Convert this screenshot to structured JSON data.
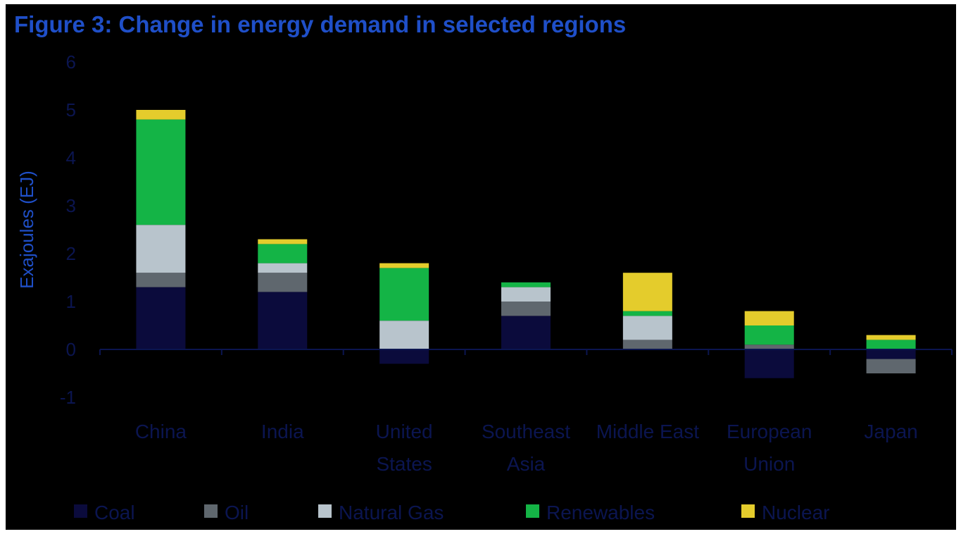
{
  "chart_data": {
    "type": "bar",
    "stacked": true,
    "title": "Figure 3: Change in energy demand in selected regions",
    "ylabel": "Exajoules (EJ)",
    "ylim": [
      -1,
      6
    ],
    "yticks": [
      -1,
      0,
      1,
      2,
      3,
      4,
      5,
      6
    ],
    "categories": [
      [
        "China"
      ],
      [
        "India"
      ],
      [
        "United",
        "States"
      ],
      [
        "Southeast",
        "Asia"
      ],
      [
        "Middle East"
      ],
      [
        "European",
        "Union"
      ],
      [
        "Japan"
      ]
    ],
    "series": [
      {
        "name": "Coal",
        "color": "#0b0b3c",
        "values": [
          1.3,
          1.2,
          -0.3,
          0.7,
          0.0,
          -0.6,
          -0.2
        ]
      },
      {
        "name": "Oil",
        "color": "#5f676e",
        "values": [
          0.3,
          0.4,
          0.0,
          0.3,
          0.2,
          0.1,
          -0.3
        ]
      },
      {
        "name": "Natural Gas",
        "color": "#b8c4cc",
        "values": [
          1.0,
          0.2,
          0.6,
          0.3,
          0.5,
          0.0,
          0.0
        ]
      },
      {
        "name": "Renewables",
        "color": "#14b446",
        "values": [
          2.2,
          0.4,
          1.1,
          0.1,
          0.1,
          0.4,
          0.2
        ]
      },
      {
        "name": "Nuclear",
        "color": "#e4cc2c",
        "values": [
          0.2,
          0.1,
          0.1,
          0.0,
          0.8,
          0.3,
          0.1
        ]
      }
    ],
    "grid": false,
    "legend_position": "bottom"
  }
}
